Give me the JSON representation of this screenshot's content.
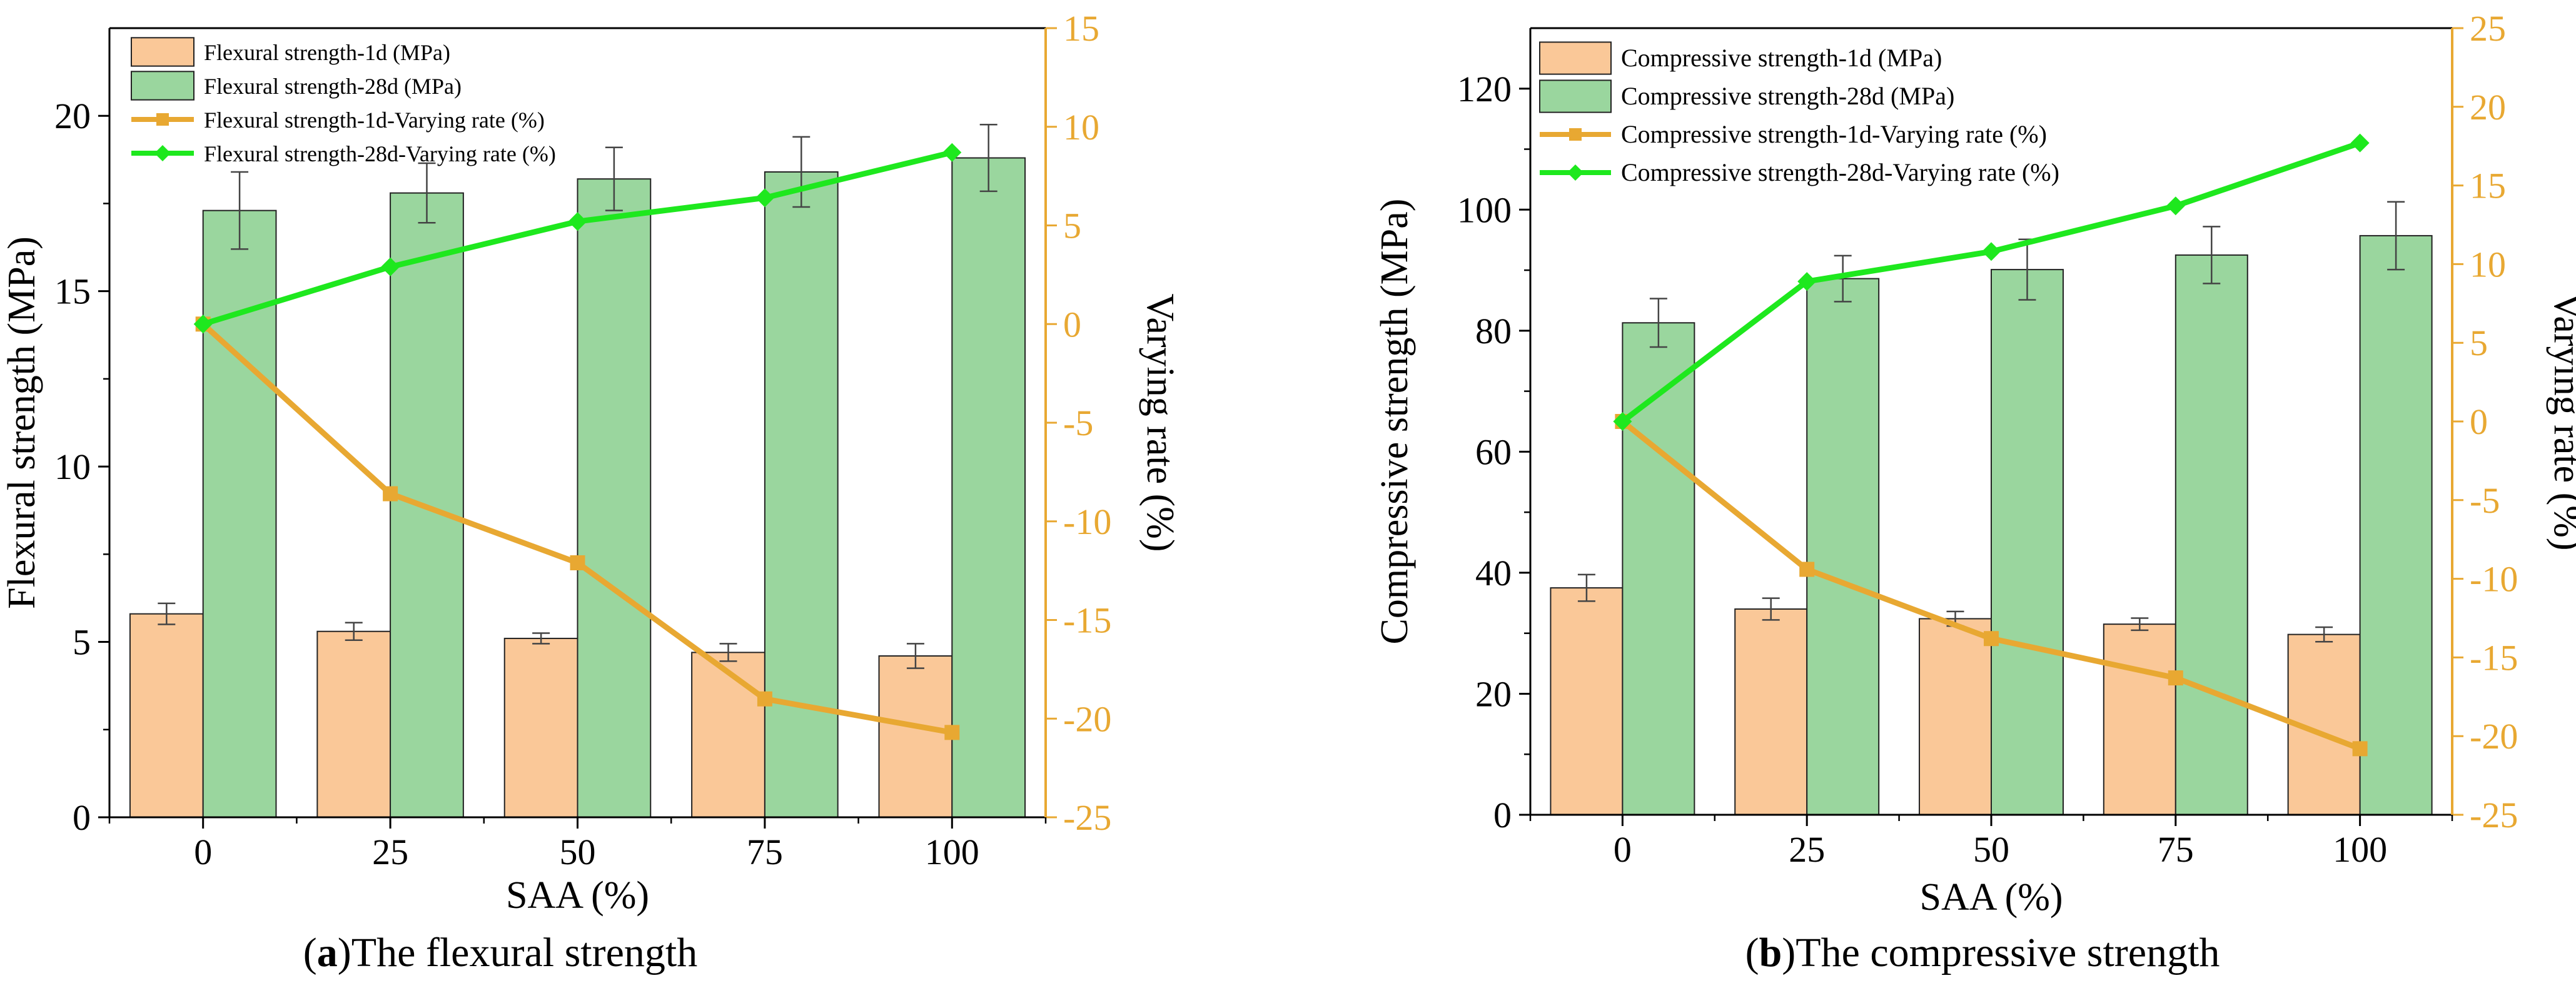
{
  "chart_data": [
    {
      "type": "bar",
      "panel": "a",
      "caption_letter": "a",
      "caption_text": "The flexural strength",
      "xlabel": "SAA (%)",
      "ylabel": "Flexural strength (MPa)",
      "y2label": "Varying rate (%)",
      "categories": [
        "0",
        "25",
        "50",
        "75",
        "100"
      ],
      "ylim": [
        0,
        22.5
      ],
      "yticks": [
        0,
        5,
        10,
        15,
        20
      ],
      "y2lim": [
        -25,
        15
      ],
      "y2ticks": [
        -25,
        -20,
        -15,
        -10,
        -5,
        0,
        5,
        10,
        15
      ],
      "series": [
        {
          "name": "Flexural strength-1d (MPa)",
          "kind": "bar",
          "values": [
            5.8,
            5.3,
            5.1,
            4.7,
            4.6
          ],
          "errors": [
            0.3,
            0.25,
            0.15,
            0.25,
            0.35
          ]
        },
        {
          "name": "Flexural strength-28d (MPa)",
          "kind": "bar",
          "values": [
            17.3,
            17.8,
            18.2,
            18.4,
            18.8
          ],
          "errors": [
            1.1,
            0.85,
            0.9,
            1.0,
            0.95
          ]
        },
        {
          "name": "Flexural strength-1d-Varying rate (%)",
          "kind": "line",
          "axis": "right",
          "marker": "square",
          "values": [
            0,
            -8.6,
            -12.1,
            -19,
            -20.7
          ]
        },
        {
          "name": "Flexural strength-28d-Varying rate (%)",
          "kind": "line",
          "axis": "right",
          "marker": "diamond",
          "values": [
            0,
            2.9,
            5.2,
            6.4,
            8.7
          ]
        }
      ]
    },
    {
      "type": "bar",
      "panel": "b",
      "caption_letter": "b",
      "caption_text": "The compressive strength",
      "xlabel": "SAA (%)",
      "ylabel": "Compressive strength (MPa)",
      "y2label": "Varying rate (%)",
      "categories": [
        "0",
        "25",
        "50",
        "75",
        "100"
      ],
      "ylim": [
        0,
        130
      ],
      "yticks": [
        0,
        20,
        40,
        60,
        80,
        100,
        120
      ],
      "y2lim": [
        -25,
        25
      ],
      "y2ticks": [
        -25,
        -20,
        -15,
        -10,
        -5,
        0,
        5,
        10,
        15,
        20,
        25
      ],
      "series": [
        {
          "name": "Compressive strength-1d (MPa)",
          "kind": "bar",
          "values": [
            37.5,
            34,
            32.4,
            31.5,
            29.8
          ],
          "errors": [
            2.2,
            1.8,
            1.2,
            1.0,
            1.2
          ]
        },
        {
          "name": "Compressive strength-28d (MPa)",
          "kind": "bar",
          "values": [
            81.3,
            88.6,
            90.1,
            92.5,
            95.7
          ],
          "errors": [
            4.0,
            3.8,
            5.0,
            4.7,
            5.6
          ]
        },
        {
          "name": "Compressive strength-1d-Varying rate (%)",
          "kind": "line",
          "axis": "right",
          "marker": "square",
          "values": [
            0,
            -9.4,
            -13.8,
            -16.3,
            -20.8
          ]
        },
        {
          "name": "Compressive strength-28d-Varying rate (%)",
          "kind": "line",
          "axis": "right",
          "marker": "diamond",
          "values": [
            0,
            8.9,
            10.8,
            13.7,
            17.7
          ]
        }
      ]
    }
  ],
  "colors": {
    "bar_1d": "#fac898",
    "bar_28d": "#9ad69e",
    "line_1d": "#e8a832",
    "line_28d": "#1ee81e",
    "right_axis": "#e8a832",
    "axis": "#000000"
  }
}
